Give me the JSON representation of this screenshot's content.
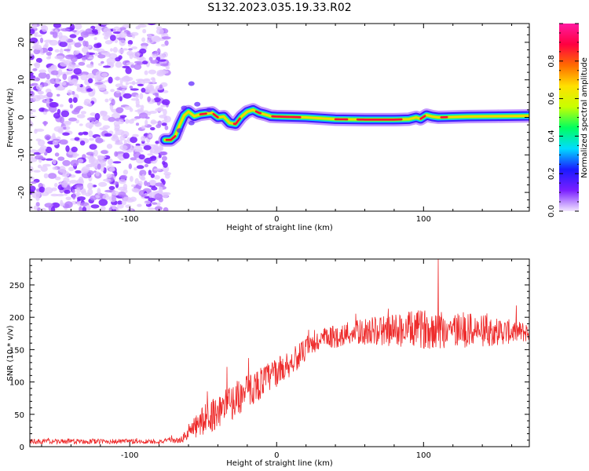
{
  "title": "S132.2023.035.19.33.R02",
  "chart_data": [
    {
      "type": "heatmap",
      "title": "",
      "xlabel": "Height of straight line (km)",
      "ylabel": "Frequency (Hz)",
      "xlim": [
        -168,
        172
      ],
      "ylim": [
        -25,
        25
      ],
      "xticks": [
        -100,
        0,
        100
      ],
      "yticks": [
        -20,
        -10,
        0,
        10,
        20
      ],
      "grid": false,
      "noise_region": {
        "x": [
          -168,
          -76
        ],
        "y": [
          -25,
          25
        ]
      },
      "ridge": {
        "x": [
          -76,
          -72,
          -69,
          -66,
          -63,
          -60,
          -56,
          -52,
          -48,
          -44,
          -40,
          -36,
          -32,
          -28,
          -24,
          -20,
          -16,
          -12,
          -8,
          -4,
          0,
          20,
          40,
          60,
          80,
          90,
          95,
          98,
          102,
          106,
          110,
          130,
          150,
          172
        ],
        "y": [
          -6,
          -6,
          -5,
          -2,
          0.5,
          1.5,
          0.3,
          0.8,
          1,
          1.2,
          0,
          0.2,
          -1.5,
          -1.8,
          0.2,
          1.5,
          2,
          1.2,
          0.8,
          0.3,
          0.2,
          0,
          -0.5,
          -0.6,
          -0.6,
          -0.5,
          0,
          -0.4,
          0.6,
          0.2,
          0,
          0.2,
          0.3,
          0.4
        ]
      },
      "colorbar": {
        "label": "Normalized spectral amplitude",
        "range": [
          0,
          1
        ],
        "ticks": [
          "0.0",
          "0.2",
          "0.4",
          "0.6",
          "0.8"
        ],
        "colors": [
          "#f2e6ff",
          "#7a1fff",
          "#1a1aff",
          "#00dcff",
          "#00ff60",
          "#c8ff00",
          "#ffe000",
          "#ff6a00",
          "#ff0040",
          "#ff1aa0"
        ]
      }
    },
    {
      "type": "line",
      "title": "",
      "xlabel": "Height of straight line (km)",
      "ylabel": "SNR (10 * v/v)",
      "xlim": [
        -168,
        172
      ],
      "ylim": [
        0,
        290
      ],
      "xticks": [
        -100,
        0,
        100
      ],
      "yticks": [
        0,
        50,
        100,
        150,
        200,
        250
      ],
      "grid": false,
      "color": "#ee2c2c",
      "trend": {
        "x": [
          -168,
          -120,
          -80,
          -65,
          -60,
          -50,
          -40,
          -30,
          -20,
          -10,
          0,
          10,
          20,
          30,
          40,
          50,
          60,
          80,
          100,
          110,
          130,
          150,
          172
        ],
        "y": [
          8,
          8,
          8,
          10,
          22,
          40,
          55,
          70,
          85,
          100,
          115,
          130,
          150,
          165,
          170,
          175,
          178,
          180,
          182,
          182,
          180,
          178,
          177
        ]
      },
      "noise_amplitude": {
        "x": [
          -168,
          -66,
          -60,
          -50,
          -30,
          -10,
          20,
          50,
          80,
          110,
          140,
          172
        ],
        "y": [
          4,
          4,
          12,
          25,
          28,
          25,
          18,
          18,
          26,
          32,
          25,
          15
        ]
      },
      "peak": {
        "x": 110,
        "y": 290
      }
    }
  ]
}
